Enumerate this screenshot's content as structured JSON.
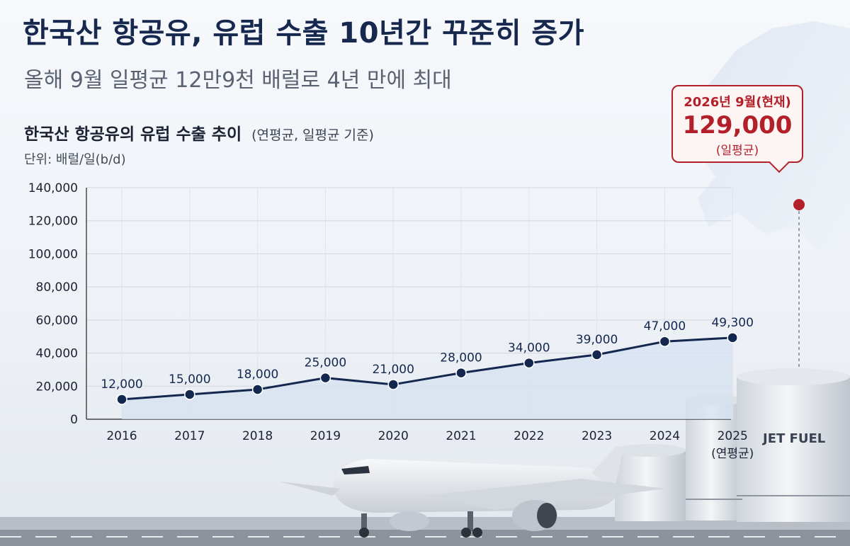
{
  "header": {
    "title": "한국산 항공유, 유럽 수출 10년간 꾸준히 증가",
    "subtitle": "올해 9월 일평균 12만9천 배럴로 4년 만에 최대"
  },
  "callout": {
    "line1": "2026년 9월(현재)",
    "value": "129,000",
    "line3": "(일평균)"
  },
  "tank": {
    "label": "JET FUEL"
  },
  "colors": {
    "line": "#14284f",
    "area": "#d6e2f1",
    "accent": "#b3202a"
  },
  "chart_data": {
    "type": "line",
    "title": "한국산 항공유의 유럽 수출 추이",
    "title_note": "(연평균, 일평균 기준)",
    "unit": "단위: 배럴/일(b/d)",
    "categories": [
      "2016",
      "2017",
      "2018",
      "2019",
      "2020",
      "2021",
      "2022",
      "2023",
      "2024",
      "2025"
    ],
    "category_sublabels": [
      "",
      "",
      "",
      "",
      "",
      "",
      "",
      "",
      "",
      "(연평균)"
    ],
    "values": [
      12000,
      15000,
      18000,
      25000,
      21000,
      28000,
      34000,
      39000,
      47000,
      49300
    ],
    "data_labels": [
      "12,000",
      "15,000",
      "18,000",
      "25,000",
      "21,000",
      "28,000",
      "34,000",
      "39,000",
      "47,000",
      "49,300"
    ],
    "ylim": [
      0,
      140000
    ],
    "yticks": [
      0,
      20000,
      40000,
      60000,
      80000,
      100000,
      120000,
      140000
    ],
    "ytick_labels": [
      "0",
      "20,000",
      "40,000",
      "60,000",
      "80,000",
      "100,000",
      "120,000",
      "140,000"
    ],
    "grid": true
  }
}
